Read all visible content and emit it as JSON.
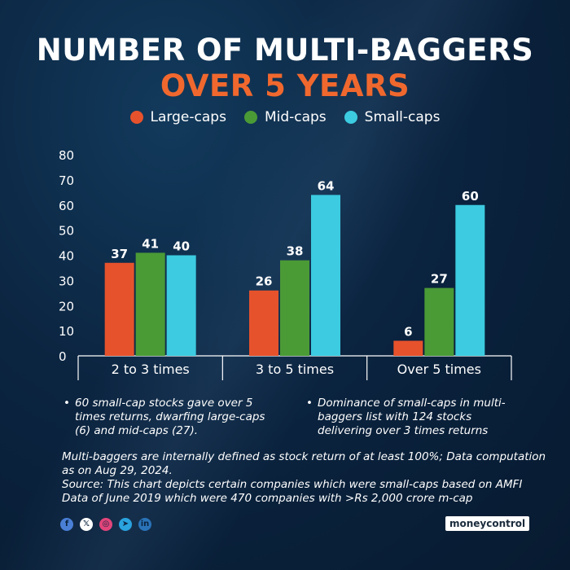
{
  "header": {
    "title_line1": "NUMBER OF MULTI-BAGGERS",
    "title_line2": "OVER 5 YEARS"
  },
  "chart_data": {
    "type": "bar",
    "categories": [
      "2 to 3 times",
      "3 to 5 times",
      "Over 5 times"
    ],
    "series": [
      {
        "name": "Large-caps",
        "color": "#e6522c",
        "values": [
          37,
          26,
          6
        ]
      },
      {
        "name": "Mid-caps",
        "color": "#4a9a36",
        "values": [
          41,
          38,
          27
        ]
      },
      {
        "name": "Small-caps",
        "color": "#3ccbe0",
        "values": [
          40,
          64,
          60
        ]
      }
    ],
    "ylim": [
      0,
      80
    ],
    "yticks": [
      "0",
      "10",
      "20",
      "30",
      "40",
      "50",
      "60",
      "70",
      "80"
    ],
    "grid": false,
    "legend": "top-center",
    "data_labels": true
  },
  "bullets": [
    "60 small-cap stocks gave over 5 times returns, dwarfing large-caps (6) and mid-caps (27).",
    "Dominance of small-caps in multi-baggers list with 124 stocks delivering over 3 times returns"
  ],
  "notes": {
    "definition": "Multi-baggers are internally defined as stock return of at least 100%; Data computation as on Aug 29, 2024.",
    "source": "Source: This chart depicts certain companies which were small-caps based on AMFI Data of June 2019 which were 470 companies with >Rs 2,000 crore m-cap"
  },
  "social": [
    {
      "icon": "facebook-icon",
      "glyph": "f",
      "color": "#4a7fd6"
    },
    {
      "icon": "x-icon",
      "glyph": "𝕏",
      "color": "#ffffff"
    },
    {
      "icon": "instagram-icon",
      "glyph": "◎",
      "color": "#e2457a"
    },
    {
      "icon": "telegram-icon",
      "glyph": "➤",
      "color": "#2aa3df"
    },
    {
      "icon": "linkedin-icon",
      "glyph": "in",
      "color": "#2a73b8"
    }
  ],
  "brand": {
    "logo_text": "moneycontrol"
  }
}
